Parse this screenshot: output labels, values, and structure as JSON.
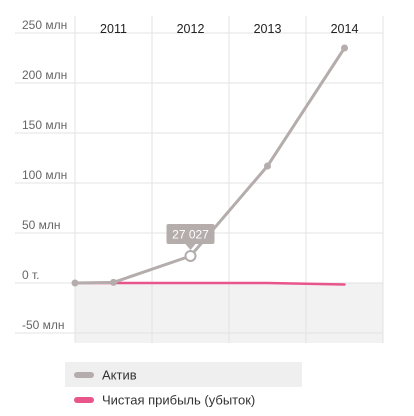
{
  "chart_data": {
    "type": "line",
    "categories": [
      "2011",
      "2012",
      "2013",
      "2014"
    ],
    "y_ticks": [
      {
        "value": 250000000,
        "label": "250 млн"
      },
      {
        "value": 200000000,
        "label": "200 млн"
      },
      {
        "value": 150000000,
        "label": "150 млн"
      },
      {
        "value": 100000000,
        "label": "100 млн"
      },
      {
        "value": 50000000,
        "label": "50 млн"
      },
      {
        "value": 0,
        "label": "0 т."
      },
      {
        "value": -50000000,
        "label": "-50 млн"
      }
    ],
    "ylim": [
      -50000000,
      250000000
    ],
    "grid": true,
    "legend_position": "bottom",
    "series": [
      {
        "name": "Актив",
        "color": "#b5acac",
        "x": [
          "2011",
          "2011.5",
          "2012.5",
          "2013.5",
          "2014.5"
        ],
        "values": [
          0,
          600000,
          27027000,
          117000000,
          235000000
        ]
      },
      {
        "name": "Чистая прибыль (убыток)",
        "color": "#e8558b",
        "x": [
          "2011",
          "2011.5",
          "2012.5",
          "2013.5",
          "2014.5"
        ],
        "values": [
          0,
          0,
          0,
          0,
          -1500000
        ]
      }
    ],
    "tooltip": {
      "series_index": 0,
      "point_index": 2,
      "label": "27 027"
    }
  }
}
